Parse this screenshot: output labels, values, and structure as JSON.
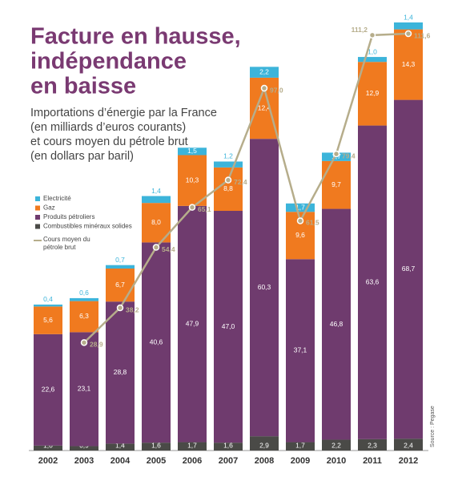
{
  "chart_data": {
    "type": "bar",
    "title": [
      "Facture en hausse,",
      "indépendance",
      "en baisse"
    ],
    "subtitle": [
      "Importations d’énergie par la France",
      "(en milliards d’euros courants)",
      "et cours moyen du pétrole brut",
      "(en dollars par baril)"
    ],
    "source": "Source : Pegase",
    "legend": "upper-left",
    "categories": [
      "2002",
      "2003",
      "2004",
      "2005",
      "2006",
      "2007",
      "2008",
      "2009",
      "2010",
      "2011",
      "2012"
    ],
    "series": [
      {
        "name": "Combustibles minéraux solides",
        "color": "#4a4a47",
        "values": [
          1.0,
          0.9,
          1.4,
          1.6,
          1.7,
          1.6,
          2.9,
          1.7,
          2.2,
          2.3,
          2.4
        ],
        "value_labels": [
          "1,0",
          "0,9",
          "1,4",
          "1,6",
          "1,7",
          "1,6",
          "2,9",
          "1,7",
          "2,2",
          "2,3",
          "2,4"
        ]
      },
      {
        "name": "Produits pétroliers",
        "color": "#6f3b6e",
        "values": [
          22.6,
          23.1,
          28.8,
          40.6,
          47.9,
          47.0,
          60.3,
          37.1,
          46.8,
          63.6,
          68.7
        ],
        "value_labels": [
          "22,6",
          "23,1",
          "28,8",
          "40,6",
          "47,9",
          "47,0",
          "60,3",
          "37,1",
          "46,8",
          "63,6",
          "68,7"
        ]
      },
      {
        "name": "Gaz",
        "color": "#f07a1f",
        "values": [
          5.6,
          6.3,
          6.7,
          8.0,
          10.3,
          8.8,
          12.4,
          9.6,
          9.7,
          12.9,
          14.3
        ],
        "value_labels": [
          "5,6",
          "6,3",
          "6,7",
          "8,0",
          "10,3",
          "8,8",
          "12,4",
          "9,6",
          "9,7",
          "12,9",
          "14,3"
        ]
      },
      {
        "name": "Electricité",
        "color": "#3cb4da",
        "values": [
          0.4,
          0.6,
          0.7,
          1.4,
          1.5,
          1.2,
          2.2,
          1.7,
          1.7,
          1.0,
          1.4
        ],
        "value_labels": [
          "0,4",
          "0,6",
          "0,7",
          "1,4",
          "1,5",
          "1,2",
          "2,2",
          "1,7",
          "1,7",
          "1,0",
          "1,4"
        ]
      },
      {
        "name": "Cours moyen du pétrole brut",
        "type": "line",
        "axis": "y2",
        "color": "#b6ad8b",
        "values": [
          null,
          28.9,
          38.2,
          54.4,
          65.1,
          72.4,
          97.0,
          61.5,
          79.4,
          111.2,
          111.6
        ],
        "value_labels": [
          null,
          "28,9",
          "38,2",
          "54,4",
          "65,1",
          "72,4",
          "97,0",
          "61,5",
          "79,4",
          "111,2",
          "111,6"
        ]
      }
    ]
  }
}
